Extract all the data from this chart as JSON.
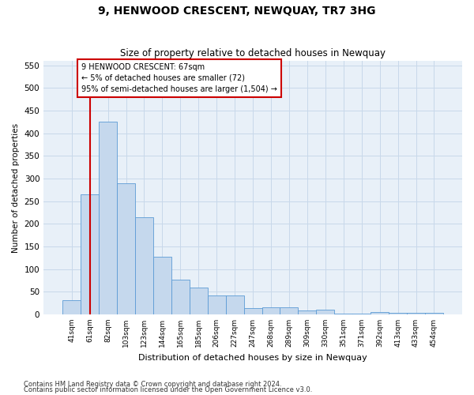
{
  "title": "9, HENWOOD CRESCENT, NEWQUAY, TR7 3HG",
  "subtitle": "Size of property relative to detached houses in Newquay",
  "xlabel": "Distribution of detached houses by size in Newquay",
  "ylabel": "Number of detached properties",
  "bins": [
    "41sqm",
    "61sqm",
    "82sqm",
    "103sqm",
    "123sqm",
    "144sqm",
    "165sqm",
    "185sqm",
    "206sqm",
    "227sqm",
    "247sqm",
    "268sqm",
    "289sqm",
    "309sqm",
    "330sqm",
    "351sqm",
    "371sqm",
    "392sqm",
    "413sqm",
    "433sqm",
    "454sqm"
  ],
  "values": [
    32,
    265,
    425,
    290,
    215,
    128,
    77,
    60,
    42,
    42,
    13,
    16,
    15,
    8,
    10,
    2,
    2,
    5,
    4,
    3,
    3
  ],
  "bar_color": "#c5d8ed",
  "bar_edge_color": "#5b9bd5",
  "grid_color": "#c8d8ea",
  "background_color": "#e8f0f8",
  "vline_x": 1,
  "vline_color": "#cc0000",
  "annotation_text": "9 HENWOOD CRESCENT: 67sqm\n← 5% of detached houses are smaller (72)\n95% of semi-detached houses are larger (1,504) →",
  "annotation_box_color": "#ffffff",
  "annotation_box_edge": "#cc0000",
  "ylim": [
    0,
    560
  ],
  "yticks": [
    0,
    50,
    100,
    150,
    200,
    250,
    300,
    350,
    400,
    450,
    500,
    550
  ],
  "footnote1": "Contains HM Land Registry data © Crown copyright and database right 2024.",
  "footnote2": "Contains public sector information licensed under the Open Government Licence v3.0."
}
